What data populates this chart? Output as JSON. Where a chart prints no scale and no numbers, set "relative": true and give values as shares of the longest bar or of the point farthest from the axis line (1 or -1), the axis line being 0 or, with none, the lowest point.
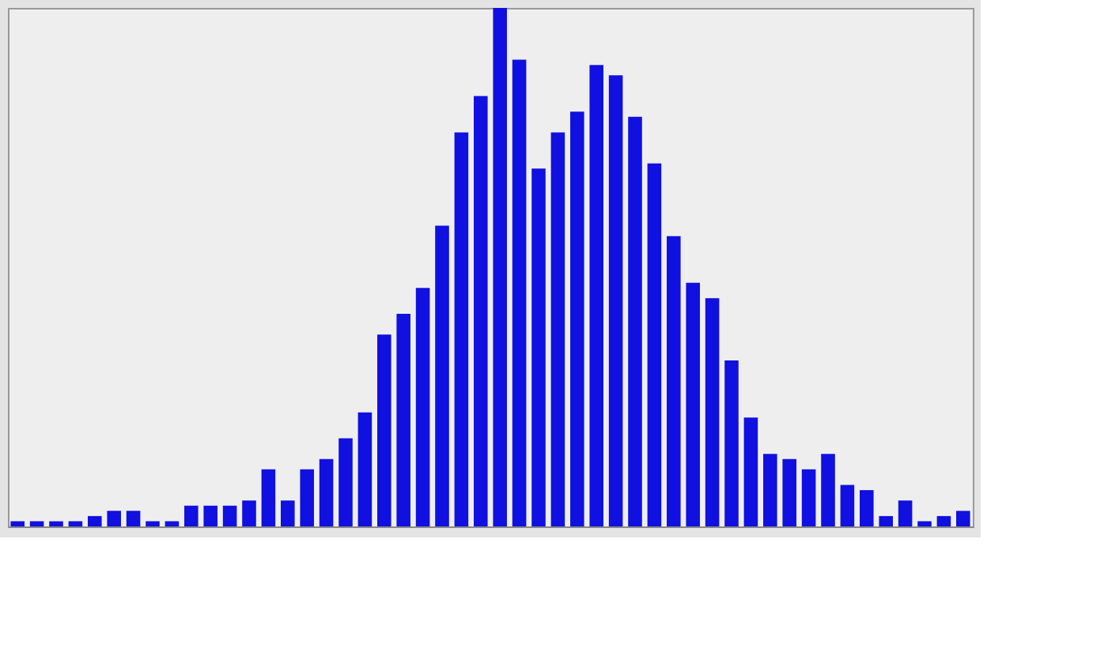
{
  "chart_data": {
    "type": "bar",
    "relative": true,
    "color": "#1010e0",
    "categories": [
      null,
      null,
      null,
      null,
      null,
      null,
      null,
      null,
      null,
      null,
      null,
      null,
      null,
      null,
      null,
      null,
      null,
      null,
      null,
      null,
      null,
      null,
      null,
      null,
      null,
      null,
      null,
      null,
      null,
      null,
      null,
      null,
      null,
      null,
      null,
      null,
      null,
      null,
      null,
      null,
      null,
      null,
      null,
      null,
      null,
      null,
      null,
      null,
      null,
      null
    ],
    "values": [
      0.01,
      0.01,
      0.01,
      0.01,
      0.02,
      0.03,
      0.03,
      0.01,
      0.01,
      0.04,
      0.04,
      0.04,
      0.05,
      0.11,
      0.05,
      0.11,
      0.13,
      0.17,
      0.22,
      0.37,
      0.41,
      0.46,
      0.58,
      0.76,
      0.83,
      1,
      0.9,
      0.69,
      0.76,
      0.8,
      0.89,
      0.87,
      0.79,
      0.7,
      0.56,
      0.47,
      0.44,
      0.32,
      0.21,
      0.14,
      0.13,
      0.11,
      0.14,
      0.08,
      0.07,
      0.02,
      0.05,
      0.01,
      0.02,
      0.03
    ]
  }
}
